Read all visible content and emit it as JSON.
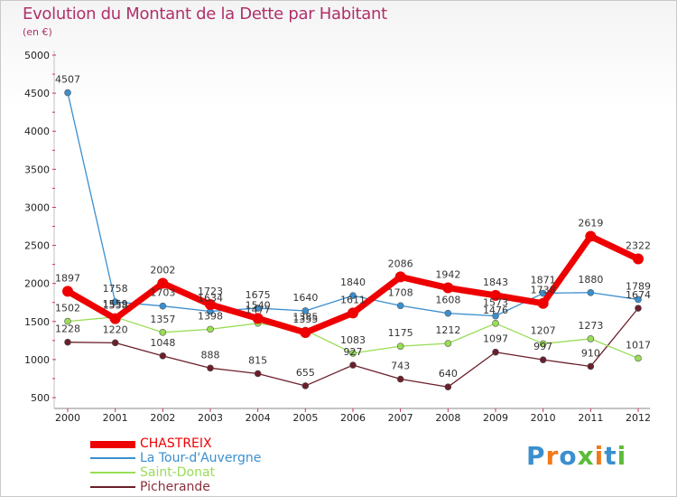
{
  "title": "Evolution du Montant de la Dette par Habitant",
  "subtitle": "(en €)",
  "chart_data": {
    "type": "line",
    "title": "Evolution du Montant de la Dette par Habitant",
    "subtitle": "(en €)",
    "x": [
      "2000",
      "2001",
      "2002",
      "2003",
      "2004",
      "2005",
      "2006",
      "2007",
      "2008",
      "2009",
      "2010",
      "2011",
      "2012"
    ],
    "ylim": [
      500,
      5000
    ],
    "yticks": [
      500,
      1000,
      1500,
      2000,
      2500,
      3000,
      3500,
      4000,
      4500,
      5000
    ],
    "grid": false,
    "legend_position": "bottom-left",
    "series": [
      {
        "name": "CHASTREIX",
        "color": "#ee0000",
        "values": [
          1897,
          1538,
          2002,
          1723,
          1540,
          1355,
          1611,
          2086,
          1942,
          1843,
          1738,
          2619,
          2322
        ]
      },
      {
        "name": "La Tour-d'Auvergne",
        "color": "#3a8fcf",
        "values": [
          4507,
          1758,
          1703,
          1634,
          1675,
          1640,
          1840,
          1708,
          1608,
          1573,
          1871,
          1880,
          1789
        ]
      },
      {
        "name": "Saint-Donat",
        "color": "#99dd55",
        "values": [
          1502,
          1559,
          1357,
          1398,
          1477,
          1385,
          1083,
          1175,
          1212,
          1476,
          1207,
          1273,
          1017
        ]
      },
      {
        "name": "Picherande",
        "color": "#6b1f2a",
        "values": [
          1228,
          1220,
          1048,
          888,
          815,
          655,
          927,
          743,
          640,
          1097,
          997,
          910,
          1674
        ]
      }
    ]
  },
  "logo": {
    "letters": [
      "P",
      "r",
      "o",
      "x",
      "i",
      "t",
      "i"
    ],
    "colors": [
      "#3a8fcf",
      "#f07a1a",
      "#3a8fcf",
      "#5cbb3a",
      "#f07a1a",
      "#3a8fcf",
      "#5cbb3a"
    ]
  }
}
